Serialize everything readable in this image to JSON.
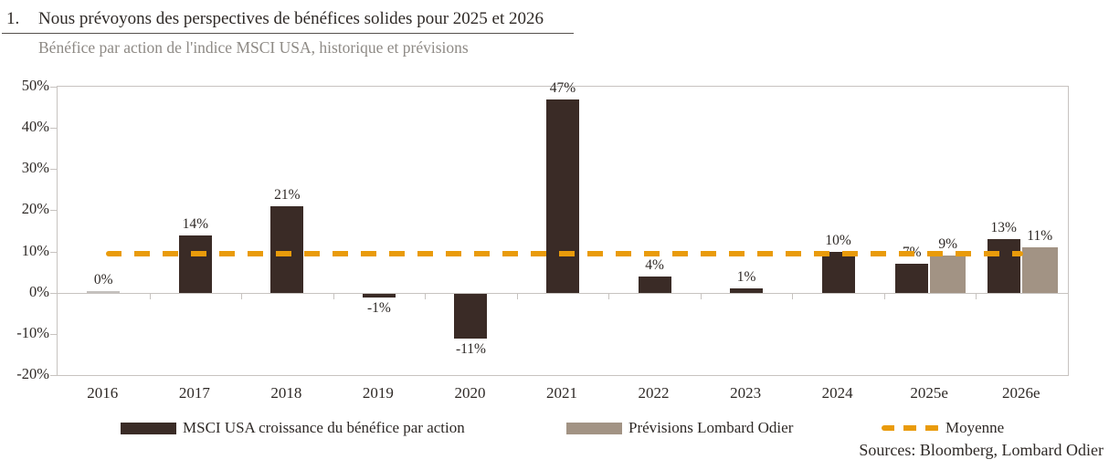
{
  "header": {
    "number": "1.",
    "title": "Nous prévoyons des perspectives de bénéfices solides pour 2025 et 2026",
    "subtitle": "Bénéfice par action de l'indice MSCI USA, historique et prévisions"
  },
  "chart_data": {
    "type": "bar",
    "title": "Bénéfice par action de l'indice MSCI USA, historique et prévisions",
    "categories": [
      "2016",
      "2017",
      "2018",
      "2019",
      "2020",
      "2021",
      "2022",
      "2023",
      "2024",
      "2025e",
      "2026e"
    ],
    "series": [
      {
        "name": "MSCI USA croissance du bénéfice par action",
        "color": "#3a2b26",
        "values": [
          0,
          14,
          21,
          -1,
          -11,
          47,
          4,
          1,
          10,
          7,
          13
        ]
      },
      {
        "name": "Prévisions Lombard Odier",
        "color": "#a29384",
        "values": [
          null,
          null,
          null,
          null,
          null,
          null,
          null,
          null,
          null,
          9,
          11
        ]
      }
    ],
    "data_label_format": "percent",
    "average_line": {
      "label": "Moyenne",
      "value": 9.5,
      "color": "#e99b0b",
      "style": "dashed"
    },
    "ylim": [
      -20,
      50
    ],
    "ytick_step": 10,
    "ytick_labels": [
      "50%",
      "40%",
      "30%",
      "20%",
      "10%",
      "0%",
      "-10%",
      "-20%"
    ],
    "grid": false,
    "legend_position": "bottom"
  },
  "legend": {
    "items": [
      {
        "label": "MSCI USA croissance du bénéfice par action",
        "type": "swatch",
        "color": "#3a2b26"
      },
      {
        "label": "Prévisions Lombard Odier",
        "type": "swatch",
        "color": "#a29384"
      },
      {
        "label": "Moyenne",
        "type": "dash",
        "color": "#e99b0b"
      }
    ]
  },
  "source": "Sources: Bloomberg, Lombard Odier"
}
